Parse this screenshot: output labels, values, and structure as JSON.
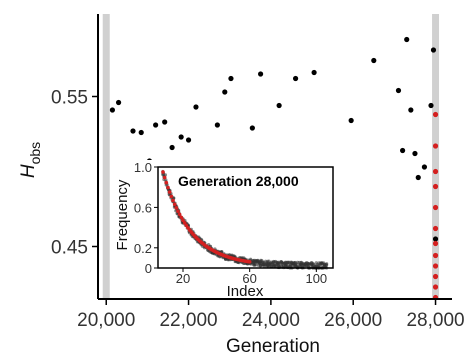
{
  "chart_data": [
    {
      "type": "scatter",
      "xlabel": "Generation",
      "ylabel": "H",
      "ylabel_subscript": "obs",
      "xlim": [
        19800,
        28400
      ],
      "ylim": [
        0.415,
        0.605
      ],
      "xticks": [
        20000,
        22000,
        24000,
        26000,
        28000
      ],
      "xtick_labels": [
        "20,000",
        "22,000",
        "24,000",
        "26,000",
        "28,000"
      ],
      "yticks": [
        0.45,
        0.55
      ],
      "ytick_labels": [
        "0.45",
        "0.55"
      ],
      "highlight_bands_x": [
        20000,
        28000
      ],
      "highlight_color": "#d0d0d0",
      "series": [
        {
          "color": "#000000",
          "points": [
            [
              20150,
              0.541
            ],
            [
              20300,
              0.546
            ],
            [
              20480,
              0.505
            ],
            [
              20650,
              0.527
            ],
            [
              20850,
              0.526
            ],
            [
              21050,
              0.507
            ],
            [
              21200,
              0.531
            ],
            [
              21420,
              0.533
            ],
            [
              21600,
              0.516
            ],
            [
              21820,
              0.523
            ],
            [
              22000,
              0.521
            ],
            [
              22180,
              0.543
            ],
            [
              22400,
              0.503
            ],
            [
              22700,
              0.531
            ],
            [
              22880,
              0.553
            ],
            [
              23030,
              0.562
            ],
            [
              23150,
              0.487
            ],
            [
              23550,
              0.529
            ],
            [
              23750,
              0.565
            ],
            [
              24200,
              0.544
            ],
            [
              24600,
              0.562
            ],
            [
              25050,
              0.566
            ],
            [
              25950,
              0.534
            ],
            [
              26500,
              0.574
            ],
            [
              27100,
              0.554
            ],
            [
              27200,
              0.514
            ],
            [
              27300,
              0.588
            ],
            [
              27400,
              0.541
            ],
            [
              27500,
              0.512
            ],
            [
              27580,
              0.496
            ],
            [
              27730,
              0.503
            ],
            [
              27890,
              0.544
            ],
            [
              27950,
              0.581
            ],
            [
              28000,
              0.455
            ]
          ]
        },
        {
          "color": "#d42020",
          "points": [
            [
              28000,
              0.538
            ],
            [
              28000,
              0.517
            ],
            [
              28000,
              0.5
            ],
            [
              28000,
              0.49
            ],
            [
              28000,
              0.476
            ],
            [
              28000,
              0.462
            ],
            [
              28000,
              0.452
            ],
            [
              28000,
              0.444
            ],
            [
              28000,
              0.437
            ],
            [
              28000,
              0.43
            ],
            [
              28000,
              0.423
            ],
            [
              28000,
              0.416
            ]
          ]
        }
      ]
    },
    {
      "type": "scatter",
      "title": "Generation 28,000",
      "xlabel": "Index",
      "ylabel": "Frequency",
      "xlim": [
        5,
        110
      ],
      "ylim": [
        0,
        1.0
      ],
      "xticks": [
        20,
        60,
        100
      ],
      "xtick_labels": [
        "20",
        "60",
        "100"
      ],
      "yticks": [
        0,
        0.2,
        0.6,
        1.0
      ],
      "ytick_labels": [
        "0",
        "0.2",
        "0.6",
        "1.0"
      ],
      "series": [
        {
          "color": "#333333",
          "model": "decay",
          "a": 0.95,
          "k": 0.06,
          "x0": 8,
          "floor": 0.02,
          "x_range": [
            8,
            106
          ],
          "spread": 0.06,
          "style": "dense-cloud"
        },
        {
          "color": "#d42020",
          "model": "decay",
          "a": 0.95,
          "k": 0.06,
          "x0": 8,
          "floor": 0.02,
          "x_range": [
            8,
            60
          ],
          "style": "line-points"
        }
      ]
    }
  ]
}
